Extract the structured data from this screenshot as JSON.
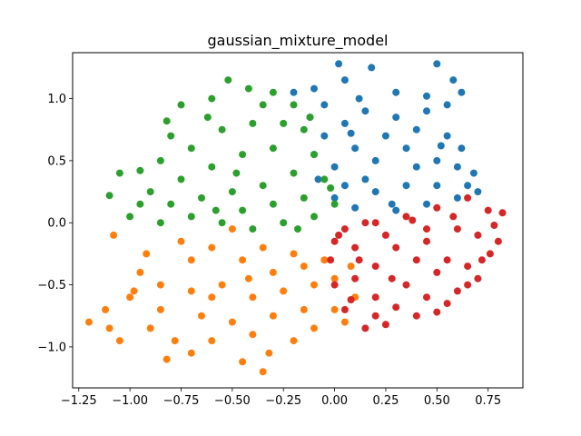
{
  "chart_data": {
    "type": "scatter",
    "title": "gaussian_mixture_model",
    "xlabel": "",
    "ylabel": "",
    "xlim": [
      -1.28,
      0.92
    ],
    "ylim": [
      -1.33,
      1.37
    ],
    "x_ticks": [
      -1.25,
      -1.0,
      -0.75,
      -0.5,
      -0.25,
      0.0,
      0.25,
      0.5,
      0.75
    ],
    "x_tick_labels": [
      "−1.25",
      "−1.00",
      "−0.75",
      "−0.50",
      "−0.25",
      "0.00",
      "0.25",
      "0.50",
      "0.75"
    ],
    "y_ticks": [
      -1.0,
      -0.5,
      0.0,
      0.5,
      1.0
    ],
    "y_tick_labels": [
      "−1.0",
      "−0.5",
      "0.0",
      "0.5",
      "1.0"
    ],
    "grid": false,
    "legend": "none",
    "series": [
      {
        "color": "#1f77b4",
        "points": [
          [
            0.02,
            1.28
          ],
          [
            0.18,
            1.25
          ],
          [
            0.5,
            1.28
          ],
          [
            0.58,
            1.15
          ],
          [
            0.62,
            1.05
          ],
          [
            -0.2,
            1.05
          ],
          [
            -0.1,
            1.08
          ],
          [
            0.05,
            1.15
          ],
          [
            0.3,
            1.05
          ],
          [
            0.45,
            1.02
          ],
          [
            -0.12,
            0.85
          ],
          [
            -0.05,
            0.7
          ],
          [
            0.05,
            0.8
          ],
          [
            0.15,
            0.9
          ],
          [
            0.3,
            0.85
          ],
          [
            0.45,
            0.9
          ],
          [
            0.55,
            0.7
          ],
          [
            0.62,
            0.6
          ],
          [
            0.68,
            0.4
          ],
          [
            0.7,
            0.25
          ],
          [
            -0.1,
            0.55
          ],
          [
            0.0,
            0.45
          ],
          [
            0.1,
            0.6
          ],
          [
            0.2,
            0.5
          ],
          [
            0.35,
            0.6
          ],
          [
            0.5,
            0.5
          ],
          [
            0.6,
            0.45
          ],
          [
            0.05,
            0.3
          ],
          [
            0.2,
            0.25
          ],
          [
            0.35,
            0.3
          ],
          [
            0.5,
            0.3
          ],
          [
            0.6,
            0.2
          ],
          [
            0.1,
            0.12
          ],
          [
            0.3,
            0.1
          ],
          [
            0.45,
            0.15
          ],
          [
            0.0,
            0.2
          ],
          [
            0.25,
            0.7
          ],
          [
            0.4,
            0.75
          ],
          [
            -0.05,
            0.95
          ],
          [
            0.12,
            1.0
          ],
          [
            0.55,
            0.95
          ],
          [
            0.15,
            0.35
          ],
          [
            0.4,
            0.45
          ],
          [
            0.65,
            0.3
          ],
          [
            -0.08,
            0.35
          ],
          [
            0.28,
            0.15
          ],
          [
            0.52,
            0.62
          ],
          [
            0.08,
            0.72
          ]
        ]
      },
      {
        "color": "#ff7f0e",
        "points": [
          [
            -1.2,
            -0.8
          ],
          [
            -1.12,
            -0.7
          ],
          [
            -1.05,
            -0.95
          ],
          [
            -1.0,
            -0.6
          ],
          [
            -0.9,
            -0.85
          ],
          [
            -0.82,
            -1.1
          ],
          [
            -0.7,
            -1.05
          ],
          [
            -0.6,
            -0.95
          ],
          [
            -0.45,
            -1.12
          ],
          [
            -0.35,
            -1.2
          ],
          [
            -0.95,
            -0.4
          ],
          [
            -0.85,
            -0.5
          ],
          [
            -0.7,
            -0.3
          ],
          [
            -0.6,
            -0.6
          ],
          [
            -0.5,
            -0.8
          ],
          [
            -0.4,
            -0.9
          ],
          [
            -0.3,
            -0.75
          ],
          [
            -0.2,
            -0.95
          ],
          [
            -0.1,
            -0.85
          ],
          [
            0.0,
            -0.7
          ],
          [
            0.05,
            -0.8
          ],
          [
            0.1,
            -0.6
          ],
          [
            0.0,
            -0.45
          ],
          [
            -0.15,
            -0.35
          ],
          [
            -0.3,
            -0.4
          ],
          [
            -0.45,
            -0.3
          ],
          [
            -0.6,
            -0.2
          ],
          [
            -0.75,
            -0.15
          ],
          [
            -0.55,
            -0.5
          ],
          [
            -0.4,
            -0.6
          ],
          [
            -0.25,
            -0.55
          ],
          [
            -0.1,
            -0.5
          ],
          [
            -0.85,
            -0.7
          ],
          [
            -0.65,
            -0.75
          ],
          [
            -0.35,
            -0.2
          ],
          [
            -0.2,
            -0.25
          ],
          [
            -0.05,
            -0.3
          ],
          [
            -1.08,
            -0.1
          ],
          [
            -1.1,
            -0.85
          ],
          [
            -0.78,
            -0.95
          ],
          [
            -0.5,
            -0.05
          ],
          [
            -0.92,
            -0.25
          ],
          [
            -0.15,
            -0.7
          ],
          [
            -0.32,
            -1.05
          ],
          [
            -0.7,
            -0.55
          ],
          [
            0.08,
            -0.35
          ],
          [
            -0.42,
            -0.45
          ],
          [
            -0.98,
            -0.55
          ]
        ]
      },
      {
        "color": "#2ca02c",
        "points": [
          [
            -1.1,
            0.22
          ],
          [
            -1.05,
            0.4
          ],
          [
            -0.95,
            0.15
          ],
          [
            -0.85,
            0.5
          ],
          [
            -0.8,
            0.7
          ],
          [
            -0.75,
            0.95
          ],
          [
            -0.6,
            1.0
          ],
          [
            -0.52,
            1.15
          ],
          [
            -0.42,
            1.08
          ],
          [
            -0.3,
            1.05
          ],
          [
            -0.2,
            0.95
          ],
          [
            -0.15,
            0.75
          ],
          [
            -0.1,
            0.55
          ],
          [
            -0.05,
            0.35
          ],
          [
            0.0,
            0.15
          ],
          [
            -0.1,
            0.05
          ],
          [
            -0.25,
            0.0
          ],
          [
            -0.4,
            -0.05
          ],
          [
            -0.55,
            0.0
          ],
          [
            -0.7,
            0.05
          ],
          [
            -0.85,
            0.0
          ],
          [
            -0.9,
            0.25
          ],
          [
            -0.75,
            0.35
          ],
          [
            -0.6,
            0.45
          ],
          [
            -0.45,
            0.55
          ],
          [
            -0.3,
            0.6
          ],
          [
            -0.2,
            0.4
          ],
          [
            -0.35,
            0.3
          ],
          [
            -0.5,
            0.25
          ],
          [
            -0.65,
            0.2
          ],
          [
            -0.8,
            0.15
          ],
          [
            -0.55,
            0.75
          ],
          [
            -0.4,
            0.8
          ],
          [
            -0.25,
            0.8
          ],
          [
            -0.7,
            0.6
          ],
          [
            -0.15,
            0.2
          ],
          [
            -0.3,
            0.15
          ],
          [
            -0.45,
            0.1
          ],
          [
            -1.0,
            0.05
          ],
          [
            -0.95,
            0.42
          ],
          [
            -0.62,
            0.85
          ],
          [
            -0.35,
            0.95
          ],
          [
            -0.12,
            0.85
          ],
          [
            -0.02,
            0.28
          ],
          [
            -0.58,
            0.1
          ],
          [
            -0.82,
            0.82
          ],
          [
            -0.18,
            -0.05
          ],
          [
            -0.48,
            0.4
          ]
        ]
      },
      {
        "color": "#d62728",
        "points": [
          [
            0.05,
            -0.05
          ],
          [
            0.2,
            0.0
          ],
          [
            0.35,
            0.05
          ],
          [
            0.5,
            0.12
          ],
          [
            0.65,
            0.2
          ],
          [
            0.75,
            0.1
          ],
          [
            0.82,
            0.08
          ],
          [
            0.8,
            -0.15
          ],
          [
            0.72,
            -0.3
          ],
          [
            0.65,
            -0.5
          ],
          [
            0.55,
            -0.65
          ],
          [
            0.4,
            -0.75
          ],
          [
            0.25,
            -0.82
          ],
          [
            0.15,
            -0.85
          ],
          [
            0.05,
            -0.7
          ],
          [
            0.0,
            -0.5
          ],
          [
            -0.02,
            -0.3
          ],
          [
            0.0,
            -0.15
          ],
          [
            0.1,
            -0.2
          ],
          [
            0.2,
            -0.35
          ],
          [
            0.3,
            -0.2
          ],
          [
            0.45,
            -0.15
          ],
          [
            0.55,
            -0.3
          ],
          [
            0.6,
            -0.05
          ],
          [
            0.7,
            -0.1
          ],
          [
            0.35,
            -0.5
          ],
          [
            0.2,
            -0.6
          ],
          [
            0.45,
            -0.6
          ],
          [
            0.1,
            -0.45
          ],
          [
            0.25,
            -0.1
          ],
          [
            0.5,
            -0.4
          ],
          [
            0.65,
            -0.35
          ],
          [
            0.4,
            -0.3
          ],
          [
            0.15,
            0.0
          ],
          [
            0.78,
            -0.02
          ],
          [
            0.58,
            0.05
          ],
          [
            0.3,
            -0.68
          ],
          [
            0.08,
            -0.62
          ],
          [
            0.5,
            -0.72
          ],
          [
            0.7,
            -0.45
          ],
          [
            0.02,
            -0.1
          ],
          [
            0.38,
            0.02
          ],
          [
            0.6,
            -0.55
          ],
          [
            0.12,
            -0.3
          ],
          [
            0.28,
            -0.45
          ],
          [
            0.45,
            -0.05
          ],
          [
            0.76,
            -0.25
          ],
          [
            0.2,
            -0.75
          ]
        ]
      }
    ]
  }
}
